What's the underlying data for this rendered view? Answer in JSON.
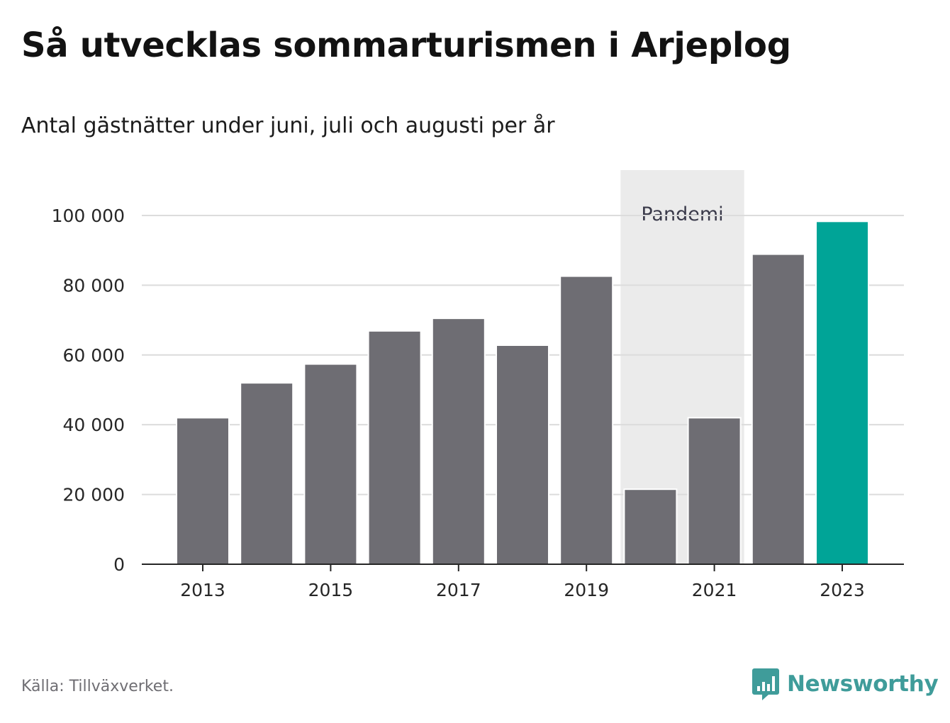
{
  "title": "Så utvecklas sommarturismen i Arjeplog",
  "subtitle": "Antal gästnätter under juni, juli och augusti per år",
  "source": "Källa: Tillväxverket.",
  "brand": {
    "name": "Newsworthy",
    "icon": "newsworthy-logo-icon",
    "color": "#3f9c9a"
  },
  "colors": {
    "bar": "#6e6d73",
    "highlight": "#00a497",
    "band": "#ebebeb",
    "grid": "#dcdcdc",
    "axis": "#262626"
  },
  "chart_data": {
    "type": "bar",
    "title": "Så utvecklas sommarturismen i Arjeplog",
    "subtitle": "Antal gästnätter under juni, juli och augusti per år",
    "xlabel": "",
    "ylabel": "",
    "categories": [
      2013,
      2014,
      2015,
      2016,
      2017,
      2018,
      2019,
      2020,
      2021,
      2022,
      2023
    ],
    "values": [
      42000,
      52000,
      57400,
      66900,
      70500,
      62800,
      82600,
      21500,
      42000,
      88900,
      98300
    ],
    "highlight_category": 2023,
    "ylim": [
      0,
      113000
    ],
    "yticks": [
      0,
      20000,
      40000,
      60000,
      80000,
      100000
    ],
    "ytick_labels": [
      "0",
      "20 000",
      "40 000",
      "60 000",
      "80 000",
      "100 000"
    ],
    "xticks": [
      2013,
      2015,
      2017,
      2019,
      2021,
      2023
    ],
    "xtick_labels": [
      "2013",
      "2015",
      "2017",
      "2019",
      "2021",
      "2023"
    ],
    "grid": true,
    "annotations": [
      {
        "type": "band",
        "from": 2020,
        "to": 2021,
        "label": "Pandemi"
      }
    ]
  }
}
